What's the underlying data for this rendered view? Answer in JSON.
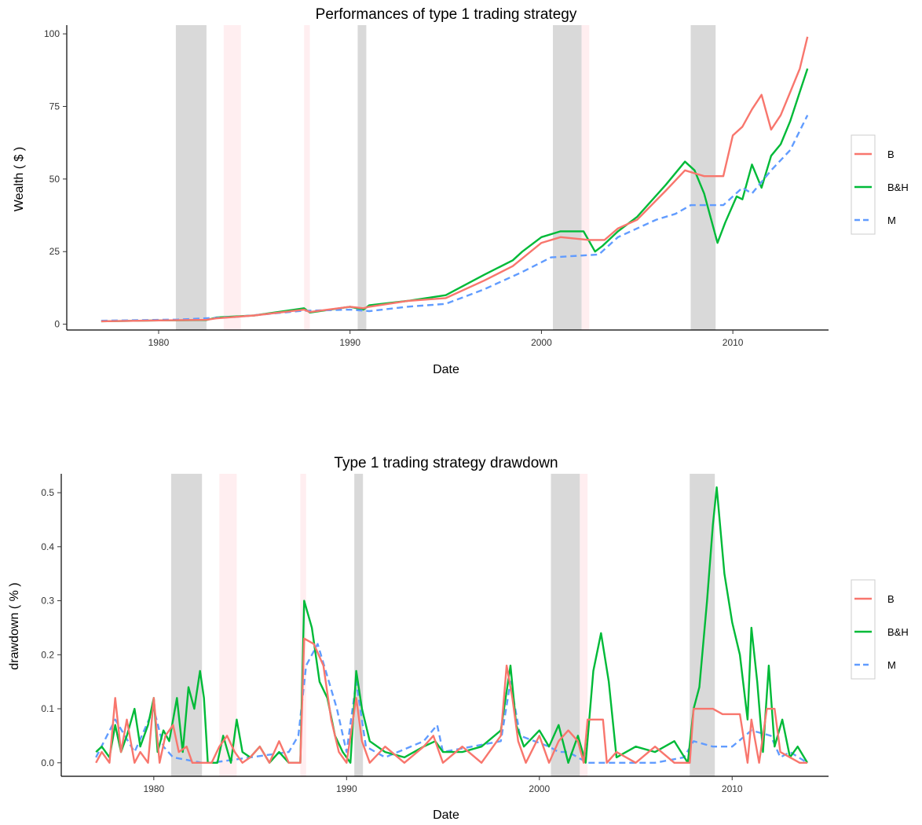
{
  "colors": {
    "B": "#F8766D",
    "B&H": "#00BA38",
    "M": "#619CFF",
    "band_dark": "#D9D9D9",
    "band_light": "#FFEEF0"
  },
  "chart_data": [
    {
      "type": "line",
      "title": "Performances of type 1 trading strategy",
      "xlabel": "Date",
      "ylabel": "Wealth ( $ )",
      "xlim": [
        1975.2,
        2015.0
      ],
      "ylim": [
        -2,
        103
      ],
      "xticks": [
        1980,
        1990,
        2000,
        2010
      ],
      "xtick_labels": [
        "1980",
        "1990",
        "2000",
        "2010"
      ],
      "yticks": [
        0,
        25,
        50,
        75,
        100
      ],
      "ytick_labels": [
        "0",
        "25",
        "50",
        "75",
        "100"
      ],
      "grid": false,
      "legend_position": "right",
      "shaded_periods": [
        {
          "start": 1980.9,
          "end": 1982.5,
          "shade": "dark"
        },
        {
          "start": 1983.4,
          "end": 1984.3,
          "shade": "light"
        },
        {
          "start": 1987.6,
          "end": 1987.9,
          "shade": "light"
        },
        {
          "start": 1990.4,
          "end": 1990.85,
          "shade": "dark"
        },
        {
          "start": 2000.6,
          "end": 2002.1,
          "shade": "dark"
        },
        {
          "start": 2002.1,
          "end": 2002.5,
          "shade": "light"
        },
        {
          "start": 2007.8,
          "end": 2009.1,
          "shade": "dark"
        }
      ],
      "series": [
        {
          "name": "B&H",
          "style": "solid",
          "x": [
            1977.0,
            1980.0,
            1982.5,
            1983.0,
            1985.0,
            1987.6,
            1987.9,
            1990.0,
            1990.7,
            1991.0,
            1993.0,
            1995.0,
            1997.0,
            1998.5,
            1999.0,
            2000.0,
            2001.0,
            2002.2,
            2002.8,
            2003.2,
            2004.0,
            2005.0,
            2006.5,
            2007.5,
            2008.0,
            2008.5,
            2009.2,
            2009.6,
            2010.2,
            2010.5,
            2011.0,
            2011.5,
            2012.0,
            2012.5,
            2013.0,
            2013.5,
            2013.9
          ],
          "y": [
            1.0,
            1.3,
            1.4,
            2.3,
            3.0,
            5.5,
            4.0,
            6.0,
            5.0,
            6.5,
            8.0,
            10.0,
            17.0,
            22.0,
            25.0,
            30.0,
            32.0,
            32.0,
            25.0,
            27.0,
            32.0,
            37.0,
            48.0,
            56.0,
            53.0,
            45.0,
            28.0,
            35.0,
            44.0,
            43.0,
            55.0,
            47.0,
            58.0,
            62.0,
            70.0,
            80.0,
            88.0
          ]
        },
        {
          "name": "M",
          "style": "dashed",
          "x": [
            1977.0,
            1981.0,
            1984.0,
            1987.5,
            1990.0,
            1991.0,
            1993.0,
            1995.0,
            1997.0,
            1999.0,
            2000.5,
            2003.0,
            2004.0,
            2006.0,
            2007.0,
            2007.8,
            2009.5,
            2010.5,
            2011.0,
            2012.0,
            2013.0,
            2013.9
          ],
          "y": [
            1.2,
            1.6,
            2.5,
            4.6,
            5.0,
            4.5,
            6.0,
            7.0,
            12.0,
            18.0,
            23.0,
            24.0,
            30.0,
            36.0,
            38.0,
            41.0,
            41.0,
            47.0,
            45.0,
            53.0,
            60.0,
            72.0
          ]
        },
        {
          "name": "B",
          "style": "solid",
          "x": [
            1977.0,
            1980.0,
            1982.5,
            1983.0,
            1985.0,
            1987.6,
            1987.9,
            1990.0,
            1990.7,
            1991.0,
            1993.0,
            1995.0,
            1997.0,
            1998.5,
            2000.0,
            2001.0,
            2002.5,
            2003.3,
            2004.0,
            2005.0,
            2006.5,
            2007.5,
            2008.0,
            2008.5,
            2009.5,
            2010.0,
            2010.5,
            2011.0,
            2011.5,
            2012.0,
            2012.5,
            2013.0,
            2013.5,
            2013.9
          ],
          "y": [
            1.0,
            1.3,
            1.5,
            2.0,
            3.0,
            5.0,
            4.2,
            6.0,
            5.5,
            6.0,
            8.0,
            9.0,
            15.0,
            20.0,
            28.0,
            30.0,
            29.0,
            29.0,
            33.0,
            36.0,
            46.0,
            53.0,
            52.0,
            51.0,
            51.0,
            65.0,
            68.0,
            74.0,
            79.0,
            67.0,
            72.0,
            80.0,
            88.0,
            99.0
          ]
        }
      ]
    },
    {
      "type": "line",
      "title": "Type 1 trading strategy drawdown",
      "xlabel": "Date",
      "ylabel": "drawdown ( % )",
      "xlim": [
        1975.2,
        2015.0
      ],
      "ylim": [
        -0.025,
        0.535
      ],
      "xticks": [
        1980,
        1990,
        2000,
        2010
      ],
      "xtick_labels": [
        "1980",
        "1990",
        "2000",
        "2010"
      ],
      "yticks": [
        0.0,
        0.1,
        0.2,
        0.3,
        0.4,
        0.5
      ],
      "ytick_labels": [
        "0.0",
        "0.1",
        "0.2",
        "0.3",
        "0.4",
        "0.5"
      ],
      "grid": false,
      "legend_position": "right",
      "shaded_periods": [
        {
          "start": 1980.9,
          "end": 1982.5,
          "shade": "dark"
        },
        {
          "start": 1983.4,
          "end": 1984.3,
          "shade": "light"
        },
        {
          "start": 1987.6,
          "end": 1987.9,
          "shade": "light"
        },
        {
          "start": 1990.4,
          "end": 1990.85,
          "shade": "dark"
        },
        {
          "start": 2000.6,
          "end": 2002.1,
          "shade": "dark"
        },
        {
          "start": 2002.1,
          "end": 2002.5,
          "shade": "light"
        },
        {
          "start": 2007.8,
          "end": 2009.1,
          "shade": "dark"
        }
      ],
      "series": [
        {
          "name": "M",
          "style": "dashed",
          "x": [
            1977.0,
            1978.0,
            1979.0,
            1980.0,
            1980.5,
            1981.0,
            1982.5,
            1983.0,
            1987.0,
            1987.5,
            1987.9,
            1988.5,
            1989.0,
            1989.5,
            1990.0,
            1990.5,
            1991.0,
            1992.0,
            1994.0,
            1994.7,
            1995.0,
            1998.0,
            1998.5,
            1999.0,
            2000.5,
            2001.0,
            2001.5,
            2002.5,
            2003.0,
            2006.0,
            2007.5,
            2008.0,
            2009.0,
            2010.0,
            2011.0,
            2012.0,
            2012.5,
            2013.0,
            2013.9
          ],
          "y": [
            0.01,
            0.08,
            0.02,
            0.1,
            0.03,
            0.01,
            0.0,
            0.0,
            0.02,
            0.05,
            0.18,
            0.22,
            0.16,
            0.1,
            0.02,
            0.15,
            0.03,
            0.01,
            0.04,
            0.07,
            0.02,
            0.04,
            0.15,
            0.05,
            0.03,
            0.02,
            0.02,
            0.0,
            0.0,
            0.0,
            0.01,
            0.04,
            0.03,
            0.03,
            0.06,
            0.05,
            0.01,
            0.02,
            0.0
          ]
        },
        {
          "name": "B&H",
          "style": "solid",
          "x": [
            1977.0,
            1977.3,
            1977.7,
            1978.0,
            1978.3,
            1978.6,
            1979.0,
            1979.3,
            1979.7,
            1980.0,
            1980.2,
            1980.5,
            1980.8,
            1981.2,
            1981.5,
            1981.8,
            1982.1,
            1982.4,
            1982.6,
            1982.8,
            1983.3,
            1983.6,
            1984.0,
            1984.3,
            1984.6,
            1985.0,
            1985.5,
            1986.0,
            1986.5,
            1987.0,
            1987.6,
            1987.8,
            1988.2,
            1988.6,
            1989.0,
            1989.4,
            1989.8,
            1990.2,
            1990.5,
            1990.8,
            1991.2,
            1992.0,
            1993.0,
            1994.0,
            1994.6,
            1995.0,
            1996.0,
            1997.0,
            1998.0,
            1998.5,
            1998.8,
            1999.2,
            2000.0,
            2000.5,
            2001.0,
            2001.5,
            2002.0,
            2002.4,
            2002.8,
            2003.2,
            2003.6,
            2004.0,
            2005.0,
            2006.0,
            2007.0,
            2007.7,
            2008.0,
            2008.3,
            2008.7,
            2009.0,
            2009.2,
            2009.6,
            2010.0,
            2010.4,
            2010.8,
            2011.0,
            2011.3,
            2011.6,
            2011.9,
            2012.2,
            2012.6,
            2013.0,
            2013.4,
            2013.9
          ],
          "y": [
            0.02,
            0.03,
            0.01,
            0.07,
            0.02,
            0.05,
            0.1,
            0.03,
            0.07,
            0.12,
            0.02,
            0.06,
            0.04,
            0.12,
            0.02,
            0.14,
            0.1,
            0.17,
            0.12,
            0.0,
            0.0,
            0.05,
            0.0,
            0.08,
            0.02,
            0.01,
            0.03,
            0.0,
            0.02,
            0.0,
            0.0,
            0.3,
            0.25,
            0.15,
            0.12,
            0.05,
            0.02,
            0.0,
            0.17,
            0.1,
            0.04,
            0.02,
            0.01,
            0.03,
            0.04,
            0.02,
            0.02,
            0.03,
            0.06,
            0.18,
            0.07,
            0.03,
            0.06,
            0.03,
            0.07,
            0.0,
            0.05,
            0.0,
            0.17,
            0.24,
            0.15,
            0.01,
            0.03,
            0.02,
            0.04,
            0.0,
            0.1,
            0.14,
            0.3,
            0.44,
            0.51,
            0.35,
            0.26,
            0.2,
            0.08,
            0.25,
            0.15,
            0.02,
            0.18,
            0.03,
            0.08,
            0.01,
            0.03,
            0.0
          ]
        },
        {
          "name": "B",
          "style": "solid",
          "x": [
            1977.0,
            1977.3,
            1977.7,
            1978.0,
            1978.3,
            1978.6,
            1979.0,
            1979.3,
            1979.7,
            1980.0,
            1980.3,
            1980.6,
            1981.0,
            1981.3,
            1981.7,
            1982.0,
            1982.6,
            1983.0,
            1983.4,
            1983.8,
            1984.2,
            1984.6,
            1985.0,
            1985.5,
            1986.0,
            1986.5,
            1987.0,
            1987.6,
            1987.8,
            1988.3,
            1988.8,
            1989.2,
            1989.6,
            1990.0,
            1990.5,
            1990.8,
            1991.2,
            1992.0,
            1993.0,
            1994.0,
            1994.5,
            1995.0,
            1996.0,
            1997.0,
            1998.0,
            1998.3,
            1998.6,
            1998.9,
            1999.3,
            2000.0,
            2000.5,
            2001.0,
            2001.5,
            2002.0,
            2002.3,
            2002.5,
            2003.3,
            2003.5,
            2004.0,
            2005.0,
            2006.0,
            2007.0,
            2007.8,
            2008.0,
            2009.0,
            2009.5,
            2010.0,
            2010.4,
            2010.8,
            2011.0,
            2011.4,
            2011.8,
            2012.2,
            2012.5,
            2013.0,
            2013.5,
            2013.9
          ],
          "y": [
            0.0,
            0.02,
            0.0,
            0.12,
            0.02,
            0.08,
            0.0,
            0.02,
            0.0,
            0.12,
            0.0,
            0.05,
            0.07,
            0.02,
            0.03,
            0.0,
            0.0,
            0.0,
            0.03,
            0.05,
            0.02,
            0.0,
            0.01,
            0.03,
            0.0,
            0.04,
            0.0,
            0.0,
            0.23,
            0.22,
            0.18,
            0.08,
            0.02,
            0.0,
            0.12,
            0.04,
            0.0,
            0.03,
            0.0,
            0.03,
            0.05,
            0.0,
            0.03,
            0.0,
            0.05,
            0.18,
            0.12,
            0.04,
            0.0,
            0.05,
            0.0,
            0.04,
            0.06,
            0.04,
            0.0,
            0.08,
            0.08,
            0.0,
            0.02,
            0.0,
            0.03,
            0.0,
            0.0,
            0.1,
            0.1,
            0.09,
            0.09,
            0.09,
            0.0,
            0.08,
            0.0,
            0.1,
            0.1,
            0.02,
            0.01,
            0.0,
            0.0
          ]
        }
      ]
    }
  ],
  "legend": {
    "items": [
      "B",
      "B&H",
      "M"
    ]
  }
}
